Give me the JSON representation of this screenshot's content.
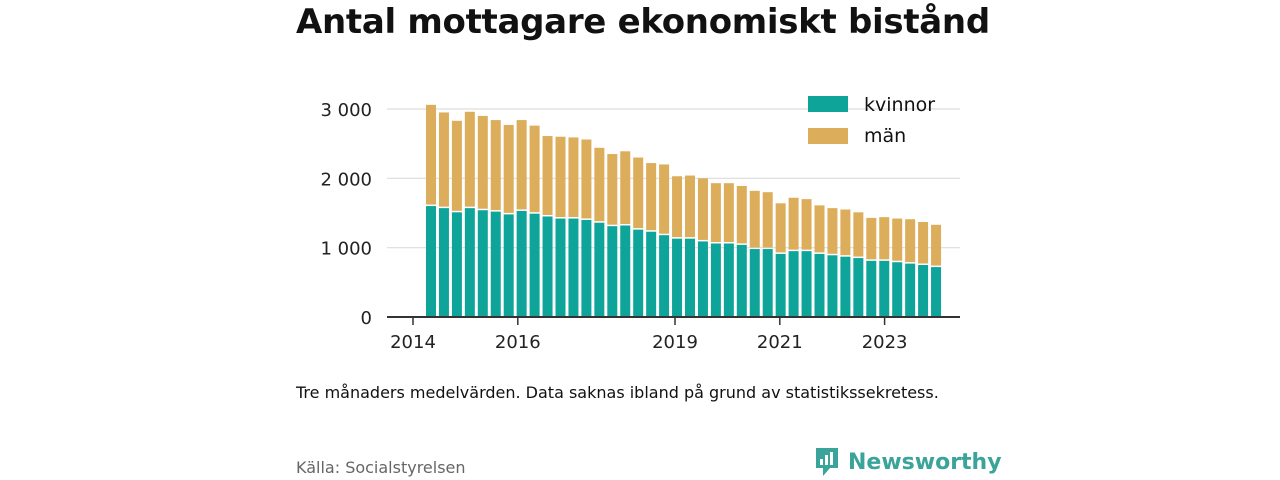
{
  "title": "Antal mottagare ekonomiskt bistånd",
  "note": "Tre månaders medelvärden. Data saknas ibland på grund av statistikssekretess.",
  "source": "Källa: Socialstyrelsen",
  "brand": {
    "name": "Newsworthy",
    "icon": "bar-chart-speech-bubble-icon"
  },
  "colors": {
    "kvinnor": "#0ea49a",
    "man": "#dcad5a",
    "axis": "#333333",
    "grid": "#dddddd"
  },
  "chart_data": {
    "type": "bar",
    "stacked": true,
    "title": "Antal mottagare ekonomiskt bistånd",
    "xlabel": "",
    "ylabel": "",
    "ylim": [
      0,
      3000
    ],
    "yticks": [
      0,
      1000,
      2000,
      3000
    ],
    "ytick_labels": [
      "0",
      "1 000",
      "2 000",
      "3 000"
    ],
    "xticks": [
      "2014",
      "2016",
      "2019",
      "2021",
      "2023"
    ],
    "legend_position": "top-right",
    "grid": true,
    "n_bars": 40,
    "series": [
      {
        "name": "kvinnor",
        "values": [
          1600,
          1570,
          1510,
          1570,
          1540,
          1520,
          1480,
          1530,
          1490,
          1450,
          1420,
          1420,
          1400,
          1360,
          1310,
          1320,
          1260,
          1230,
          1180,
          1130,
          1130,
          1090,
          1060,
          1060,
          1040,
          980,
          980,
          910,
          950,
          950,
          910,
          890,
          870,
          850,
          810,
          810,
          790,
          770,
          750,
          720
        ]
      },
      {
        "name": "män",
        "values": [
          1460,
          1380,
          1320,
          1390,
          1360,
          1320,
          1290,
          1310,
          1270,
          1160,
          1180,
          1170,
          1160,
          1080,
          1040,
          1070,
          1040,
          990,
          1020,
          900,
          910,
          910,
          870,
          870,
          850,
          840,
          820,
          730,
          770,
          750,
          700,
          680,
          680,
          660,
          620,
          630,
          630,
          640,
          620,
          610
        ]
      }
    ],
    "x_range": [
      "2014",
      "2024"
    ]
  }
}
